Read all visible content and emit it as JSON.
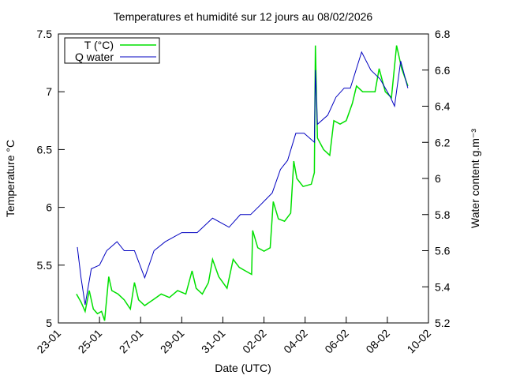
{
  "chart_data": {
    "type": "line",
    "title": "Temperatures et humidité sur 12 jours au 08/02/2026",
    "xlabel": "Date (UTC)",
    "ylabel": "Temperature °C",
    "y2label": "Water content g.m⁻³",
    "xlim": [
      0,
      18
    ],
    "xticks": [
      {
        "value": 0,
        "label": "23-01"
      },
      {
        "value": 2,
        "label": "25-01"
      },
      {
        "value": 4,
        "label": "27-01"
      },
      {
        "value": 6,
        "label": "29-01"
      },
      {
        "value": 8,
        "label": "31-01"
      },
      {
        "value": 10,
        "label": "02-02"
      },
      {
        "value": 12,
        "label": "04-02"
      },
      {
        "value": 14,
        "label": "06-02"
      },
      {
        "value": 16,
        "label": "08-02"
      },
      {
        "value": 18,
        "label": "10-02"
      }
    ],
    "ylim": [
      5,
      7.5
    ],
    "yticks": [
      5,
      5.5,
      6,
      6.5,
      7,
      7.5
    ],
    "y2lim": [
      5.2,
      6.8
    ],
    "y2ticks": [
      5.2,
      5.4,
      5.6,
      5.8,
      6,
      6.2,
      6.4,
      6.6,
      6.8
    ],
    "legend": "upper-left",
    "series": [
      {
        "name": "T (°C)",
        "color": "#00e000",
        "x": [
          0.88,
          1.1,
          1.3,
          1.5,
          1.7,
          1.9,
          2.1,
          2.25,
          2.45,
          2.6,
          2.9,
          3.2,
          3.5,
          3.7,
          3.9,
          4.2,
          4.6,
          5.0,
          5.4,
          5.8,
          6.2,
          6.5,
          6.7,
          7.0,
          7.3,
          7.5,
          7.8,
          8.2,
          8.5,
          8.8,
          9.1,
          9.4,
          9.45,
          9.7,
          10.0,
          10.3,
          10.45,
          10.7,
          11.0,
          11.3,
          11.45,
          11.6,
          11.9,
          12.3,
          12.45,
          12.5,
          12.6,
          12.9,
          13.2,
          13.4,
          13.7,
          14.0,
          14.3,
          14.5,
          14.8,
          15.1,
          15.4,
          15.6,
          15.9,
          16.2,
          16.45,
          16.7,
          17.0
        ],
        "values": [
          5.25,
          5.18,
          5.1,
          5.28,
          5.12,
          5.08,
          5.1,
          5.02,
          5.4,
          5.28,
          5.25,
          5.2,
          5.12,
          5.35,
          5.2,
          5.15,
          5.2,
          5.25,
          5.22,
          5.28,
          5.25,
          5.45,
          5.3,
          5.25,
          5.35,
          5.55,
          5.4,
          5.3,
          5.55,
          5.48,
          5.45,
          5.42,
          5.8,
          5.65,
          5.62,
          5.65,
          6.05,
          5.9,
          5.88,
          5.95,
          6.4,
          6.25,
          6.18,
          6.2,
          6.3,
          7.4,
          6.6,
          6.5,
          6.45,
          6.75,
          6.72,
          6.75,
          6.9,
          7.05,
          7.0,
          7.0,
          7.0,
          7.2,
          7.0,
          6.95,
          7.4,
          7.2,
          7.05
        ]
      },
      {
        "name": "Q water",
        "color": "#0000c0",
        "axis": "y2",
        "x": [
          0.92,
          1.1,
          1.3,
          1.6,
          2.0,
          2.35,
          2.85,
          3.2,
          3.7,
          4.2,
          4.65,
          5.2,
          6.0,
          6.75,
          7.5,
          8.3,
          8.85,
          9.35,
          9.8,
          10.4,
          10.8,
          11.15,
          11.55,
          11.95,
          12.45,
          12.5,
          12.6,
          13.1,
          13.5,
          13.9,
          14.2,
          14.75,
          15.2,
          15.65,
          16.15,
          16.35,
          16.65,
          17.0
        ],
        "values": [
          5.62,
          5.45,
          5.3,
          5.5,
          5.52,
          5.6,
          5.65,
          5.6,
          5.6,
          5.45,
          5.6,
          5.65,
          5.7,
          5.7,
          5.78,
          5.73,
          5.8,
          5.8,
          5.85,
          5.92,
          6.05,
          6.1,
          6.25,
          6.25,
          6.2,
          6.6,
          6.3,
          6.35,
          6.45,
          6.5,
          6.5,
          6.7,
          6.6,
          6.55,
          6.45,
          6.4,
          6.65,
          6.5
        ]
      }
    ]
  }
}
